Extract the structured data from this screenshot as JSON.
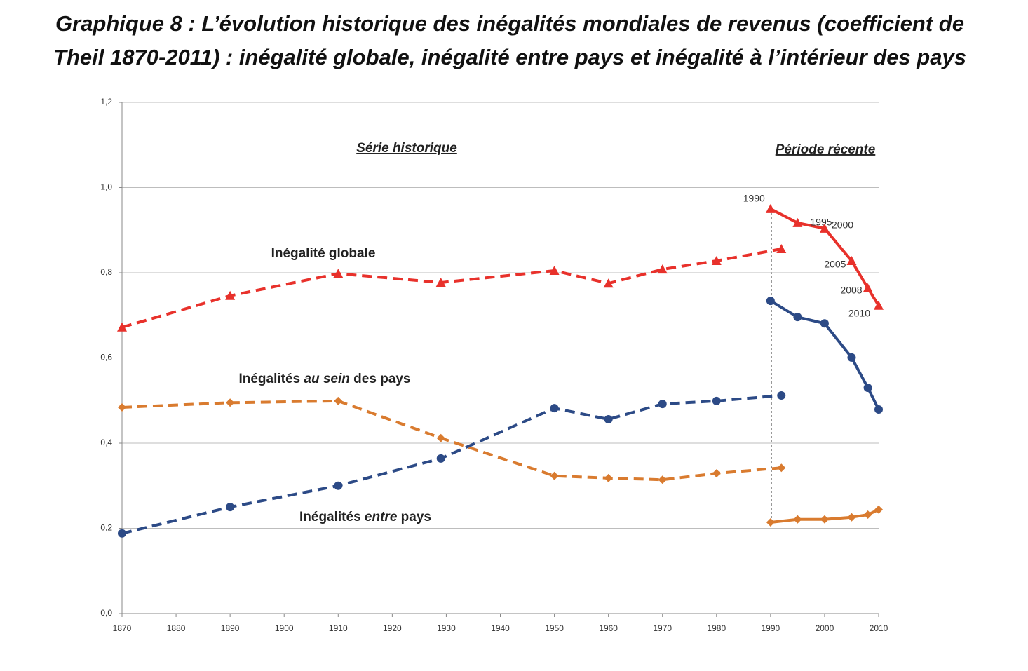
{
  "chart_data": {
    "type": "line",
    "title": [
      "Graphique 8 : L’évolution historique des inégalités mondiales de revenus (coefficient de",
      "Theil 1870-2011) : inégalité globale, inégalité entre pays et inégalité à l’intérieur des pays"
    ],
    "annotations": [
      "Série historique",
      "Période récente",
      "Inégalité globale",
      [
        "Inégalités ",
        "au sein",
        " des pays"
      ],
      [
        "Inégalités ",
        "entre",
        " pays"
      ]
    ],
    "xlim": [
      1870,
      2010
    ],
    "xticks": [
      1870,
      1880,
      1890,
      1900,
      1910,
      1920,
      1930,
      1940,
      1950,
      1960,
      1970,
      1980,
      1990,
      2000,
      2010
    ],
    "ylim": [
      0,
      1.2
    ],
    "yticks": [
      {
        "value": 0,
        "label": "0,0"
      },
      {
        "value": 0.2,
        "label": "0,2"
      },
      {
        "value": 0.4,
        "label": "0,4"
      },
      {
        "value": 0.6,
        "label": "0,6"
      },
      {
        "value": 0.8,
        "label": "0,8"
      },
      {
        "value": 1.0,
        "label": "1,0"
      },
      {
        "value": 1.2,
        "label": "1,2"
      }
    ],
    "grid": true,
    "series": [
      {
        "color": "#e8312b",
        "marker": "triangle",
        "dashed": true,
        "x": [
          1870,
          1890,
          1910,
          1929,
          1950,
          1960,
          1970,
          1980,
          1992
        ],
        "values": [
          0.672,
          0.746,
          0.798,
          0.777,
          0.805,
          0.775,
          0.808,
          0.828,
          0.856
        ]
      },
      {
        "color": "#d97b2f",
        "marker": "diamond",
        "dashed": true,
        "x": [
          1870,
          1890,
          1910,
          1929,
          1950,
          1960,
          1970,
          1980,
          1992
        ],
        "values": [
          0.484,
          0.495,
          0.499,
          0.412,
          0.323,
          0.318,
          0.314,
          0.329,
          0.342
        ]
      },
      {
        "color": "#2c4a86",
        "marker": "circle",
        "dashed": true,
        "x": [
          1870,
          1890,
          1910,
          1929,
          1950,
          1960,
          1970,
          1980,
          1992
        ],
        "values": [
          0.188,
          0.25,
          0.3,
          0.364,
          0.482,
          0.456,
          0.492,
          0.499,
          0.512
        ]
      },
      {
        "color": "#e8312b",
        "marker": "triangle",
        "dashed": false,
        "point_labels": true,
        "x": [
          1990,
          1995,
          2000,
          2005,
          2008,
          2010
        ],
        "values": [
          0.95,
          0.917,
          0.904,
          0.828,
          0.764,
          0.723
        ]
      },
      {
        "color": "#2c4a86",
        "marker": "circle",
        "dashed": false,
        "x": [
          1990,
          1995,
          2000,
          2005,
          2008,
          2010
        ],
        "values": [
          0.734,
          0.696,
          0.681,
          0.601,
          0.53,
          0.479
        ]
      },
      {
        "color": "#d97b2f",
        "marker": "diamond",
        "dashed": false,
        "x": [
          1990,
          1995,
          2000,
          2005,
          2008,
          2010
        ],
        "values": [
          0.214,
          0.221,
          0.221,
          0.226,
          0.232,
          0.244
        ]
      }
    ]
  }
}
